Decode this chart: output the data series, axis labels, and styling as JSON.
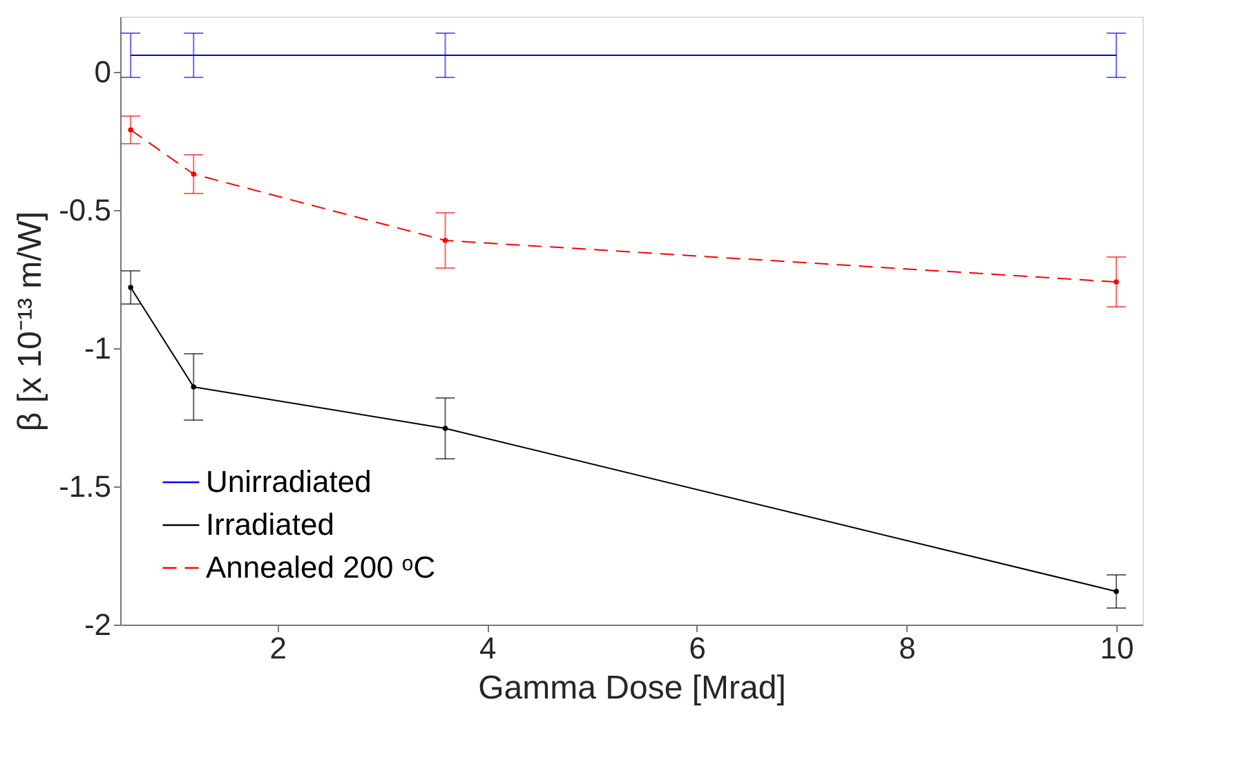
{
  "chart_data": {
    "type": "line",
    "xlabel": "Gamma Dose [Mrad]",
    "ylabel": "β [x 10⁻¹³ m/W]",
    "xlim": [
      0.5,
      10.25
    ],
    "xticks": [
      2,
      4,
      6,
      8,
      10
    ],
    "ylim": [
      -2,
      0.2
    ],
    "yticks": [
      0,
      -0.5,
      -1,
      -1.5,
      -2
    ],
    "grid": false,
    "legend": "bottom left",
    "series": [
      {
        "name": "Unirradiated",
        "color": "#0000ff",
        "x": [
          0.6,
          1.2,
          3.6,
          10
        ],
        "values": [
          0.06,
          0.06,
          0.06,
          0.06
        ],
        "errors": [
          0.08,
          0.08,
          0.08,
          0.08
        ],
        "marker": "none",
        "line_style": "solid"
      },
      {
        "name": "Irradiated",
        "color": "#000000",
        "x": [
          0.6,
          1.2,
          3.6,
          10
        ],
        "values": [
          -0.78,
          -1.14,
          -1.29,
          -1.88
        ],
        "errors": [
          0.06,
          0.12,
          0.11,
          0.06
        ],
        "marker": "circle",
        "line_style": "solid"
      },
      {
        "name": "Annealed 200 ᵒC",
        "color": "#ff0000",
        "x": [
          0.6,
          1.2,
          3.6,
          10
        ],
        "values": [
          -0.21,
          -0.37,
          -0.61,
          -0.76
        ],
        "errors": [
          0.05,
          0.07,
          0.1,
          0.09
        ],
        "marker": "circle",
        "line_style": "dashed"
      }
    ]
  }
}
